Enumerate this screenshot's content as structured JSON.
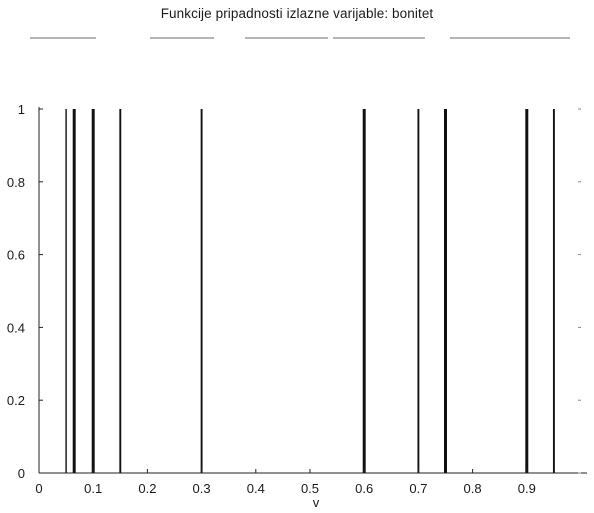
{
  "chart_data": {
    "type": "line",
    "title": "Funkcije pripadnosti izlazne varijable: bonitet",
    "xlabel": "v",
    "ylabel": "",
    "xlim": [
      0,
      1
    ],
    "ylim": [
      0,
      1
    ],
    "grid": false,
    "xticks": [
      "0",
      "0.1",
      "0.2",
      "0.3",
      "0.4",
      "0.5",
      "0.6",
      "0.7",
      "0.8",
      "0.9"
    ],
    "yticks": [
      "0",
      "0.2",
      "0.4",
      "0.6",
      "0.8",
      "1"
    ],
    "series": [
      {
        "x": [
          0.05,
          0.05
        ],
        "y": [
          0,
          1
        ],
        "width": "thin"
      },
      {
        "x": [
          0.065,
          0.065
        ],
        "y": [
          0,
          1
        ],
        "width": "thick"
      },
      {
        "x": [
          0.1,
          0.1
        ],
        "y": [
          0,
          1
        ],
        "width": "thick"
      },
      {
        "x": [
          0.15,
          0.15
        ],
        "y": [
          0,
          1
        ],
        "width": "medium"
      },
      {
        "x": [
          0.3,
          0.3
        ],
        "y": [
          0,
          1
        ],
        "width": "medium"
      },
      {
        "x": [
          0.6,
          0.6
        ],
        "y": [
          0,
          1
        ],
        "width": "thick"
      },
      {
        "x": [
          0.7,
          0.7
        ],
        "y": [
          0,
          1
        ],
        "width": "medium"
      },
      {
        "x": [
          0.75,
          0.75
        ],
        "y": [
          0,
          1
        ],
        "width": "thick"
      },
      {
        "x": [
          0.9,
          0.9
        ],
        "y": [
          0,
          1
        ],
        "width": "thick"
      },
      {
        "x": [
          0.95,
          0.95
        ],
        "y": [
          0,
          1
        ],
        "width": "medium"
      }
    ]
  }
}
